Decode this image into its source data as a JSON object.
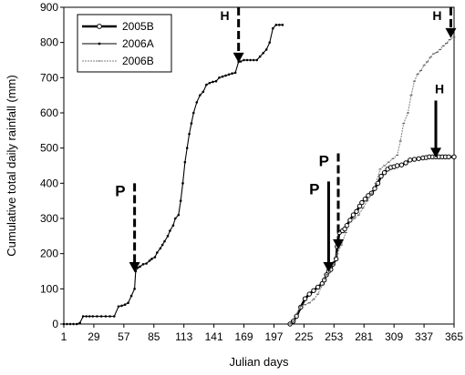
{
  "chart_data": {
    "type": "line",
    "title": "",
    "xlabel": "Julian days",
    "ylabel": "Cumulative total daily rainfall (mm)",
    "xlim": [
      1,
      365
    ],
    "ylim": [
      0,
      900
    ],
    "x_ticks": [
      1,
      29,
      57,
      85,
      113,
      141,
      169,
      197,
      225,
      253,
      281,
      309,
      337,
      365
    ],
    "y_ticks": [
      0,
      100,
      200,
      300,
      400,
      500,
      600,
      700,
      800,
      900
    ],
    "grid": false,
    "legend_position": "top-left",
    "series": [
      {
        "name": "2005B",
        "style": "thick-open-circles",
        "color": "#000000",
        "x": [
          212,
          215,
          218,
          222,
          226,
          230,
          234,
          238,
          242,
          244,
          246,
          248,
          250,
          252,
          255,
          256,
          258,
          261,
          263,
          265,
          268,
          271,
          274,
          277,
          279,
          282,
          285,
          288,
          291,
          294,
          297,
          300,
          303,
          306,
          309,
          312,
          316,
          320,
          324,
          328,
          332,
          336,
          339,
          342,
          345,
          348,
          351,
          354,
          357,
          360,
          365
        ],
        "y": [
          0,
          8,
          22,
          48,
          72,
          85,
          95,
          105,
          115,
          125,
          140,
          150,
          155,
          170,
          185,
          220,
          260,
          265,
          270,
          280,
          295,
          310,
          320,
          335,
          345,
          355,
          365,
          372,
          385,
          400,
          420,
          430,
          440,
          445,
          447,
          450,
          452,
          458,
          466,
          468,
          470,
          472,
          473,
          475,
          475,
          475,
          475,
          475,
          475,
          475,
          475
        ]
      },
      {
        "name": "2006A",
        "style": "thin-small-dots",
        "color": "#000000",
        "x": [
          1,
          4,
          7,
          10,
          13,
          16,
          19,
          22,
          25,
          28,
          32,
          36,
          40,
          44,
          48,
          52,
          55,
          58,
          61,
          64,
          67,
          68,
          70,
          72,
          75,
          78,
          81,
          83,
          86,
          88,
          91,
          93,
          95,
          98,
          100,
          103,
          105,
          108,
          110,
          112,
          114,
          116,
          118,
          120,
          122,
          125,
          128,
          131,
          134,
          137,
          140,
          143,
          146,
          149,
          152,
          155,
          158,
          161,
          164,
          166,
          169,
          172,
          175,
          178,
          181,
          184,
          187,
          190,
          193,
          196,
          199,
          202,
          205
        ],
        "y": [
          0,
          0,
          0,
          0,
          0,
          3,
          22,
          22,
          22,
          22,
          22,
          22,
          22,
          22,
          22,
          50,
          52,
          55,
          60,
          80,
          100,
          150,
          160,
          163,
          170,
          172,
          180,
          185,
          190,
          203,
          215,
          225,
          235,
          250,
          265,
          280,
          300,
          310,
          350,
          400,
          460,
          500,
          540,
          570,
          600,
          630,
          650,
          660,
          680,
          685,
          688,
          690,
          700,
          703,
          706,
          709,
          712,
          714,
          745,
          746,
          750,
          750,
          750,
          750,
          750,
          760,
          770,
          780,
          800,
          840,
          850,
          850,
          850
        ]
      },
      {
        "name": "2006B",
        "style": "thin-gray-dashes",
        "color": "#808080",
        "x": [
          212,
          215,
          218,
          222,
          226,
          230,
          234,
          238,
          242,
          246,
          249,
          252,
          256,
          260,
          264,
          268,
          272,
          276,
          280,
          284,
          288,
          292,
          296,
          300,
          304,
          308,
          312,
          315,
          318,
          322,
          325,
          328,
          331,
          334,
          337,
          340,
          343,
          346,
          349,
          352,
          355,
          358,
          361,
          365
        ],
        "y": [
          0,
          8,
          28,
          50,
          55,
          60,
          70,
          85,
          110,
          140,
          150,
          170,
          200,
          225,
          260,
          290,
          300,
          310,
          330,
          350,
          370,
          400,
          440,
          450,
          460,
          470,
          480,
          520,
          570,
          600,
          650,
          690,
          710,
          720,
          735,
          745,
          758,
          768,
          772,
          780,
          790,
          798,
          808,
          815
        ]
      }
    ],
    "annotations": [
      {
        "label": "P",
        "x": 67,
        "y_top": 400,
        "y_tip": 150,
        "line": "dashed",
        "label_side": "left"
      },
      {
        "label": "H",
        "x": 164,
        "y_top": 900,
        "y_tip": 745,
        "line": "dashed",
        "label_side": "left"
      },
      {
        "label": "P",
        "x": 248,
        "y_top": 405,
        "y_tip": 150,
        "line": "solid",
        "label_side": "left"
      },
      {
        "label": "P",
        "x": 257,
        "y_top": 485,
        "y_tip": 215,
        "line": "dashed",
        "label_side": "left"
      },
      {
        "label": "H",
        "x": 348,
        "y_top": 635,
        "y_tip": 475,
        "line": "solid",
        "label_side": "above"
      },
      {
        "label": "H",
        "x": 362,
        "y_top": 900,
        "y_tip": 815,
        "line": "dashed",
        "label_side": "left"
      }
    ]
  }
}
